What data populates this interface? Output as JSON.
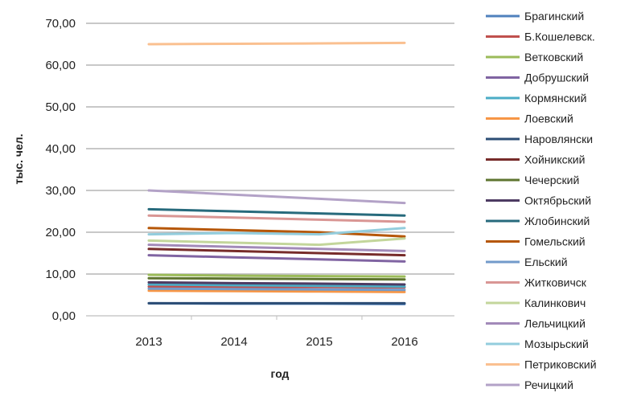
{
  "chart_data": {
    "type": "line",
    "xlabel": "год",
    "ylabel": "тыс. чел.",
    "ylim": [
      0,
      70
    ],
    "yticks": [
      "0,00",
      "10,00",
      "20,00",
      "30,00",
      "40,00",
      "50,00",
      "60,00",
      "70,00"
    ],
    "categories": [
      "2013",
      "2014",
      "2015",
      "2016"
    ],
    "grid": true,
    "legend_position": "right",
    "series": [
      {
        "name": "Брагинский",
        "color": "#4F81BD",
        "values": [
          3.0,
          2.9,
          2.9,
          2.8
        ]
      },
      {
        "name": "Б.Кошелевск.",
        "color": "#C0504D",
        "values": [
          7.0,
          6.9,
          6.9,
          6.8
        ]
      },
      {
        "name": "Ветковский",
        "color": "#9BBB59",
        "values": [
          9.8,
          9.6,
          9.5,
          9.4
        ]
      },
      {
        "name": "Добрушский",
        "color": "#8064A2",
        "values": [
          14.5,
          14.0,
          13.5,
          13.0
        ]
      },
      {
        "name": "Кормянский",
        "color": "#4BACC6",
        "values": [
          7.5,
          7.3,
          7.2,
          7.0
        ]
      },
      {
        "name": "Лоевский",
        "color": "#F79646",
        "values": [
          6.0,
          5.9,
          5.8,
          5.7
        ]
      },
      {
        "name": "Наровлянски",
        "color": "#2C4D75",
        "values": [
          3.0,
          3.0,
          3.0,
          3.0
        ]
      },
      {
        "name": "Хойникский",
        "color": "#772C2A",
        "values": [
          16.0,
          15.5,
          15.0,
          14.5
        ]
      },
      {
        "name": "Чечерский",
        "color": "#5F7530",
        "values": [
          9.0,
          8.9,
          8.8,
          8.7
        ]
      },
      {
        "name": "Октябрьский",
        "color": "#4D3B62",
        "values": [
          8.0,
          7.8,
          7.7,
          7.5
        ]
      },
      {
        "name": "Жлобинский",
        "color": "#276A7C",
        "values": [
          25.5,
          25.0,
          24.5,
          24.0
        ]
      },
      {
        "name": "Гомельский",
        "color": "#B65708",
        "values": [
          21.0,
          20.5,
          20.0,
          19.0
        ]
      },
      {
        "name": "Ельский",
        "color": "#729ACA",
        "values": [
          6.5,
          6.4,
          6.3,
          6.2
        ]
      },
      {
        "name": "Житковичск",
        "color": "#D99694",
        "values": [
          24.0,
          23.5,
          23.0,
          22.5
        ]
      },
      {
        "name": "Калинкович",
        "color": "#C3D69B",
        "values": [
          18.0,
          17.5,
          17.0,
          18.5
        ]
      },
      {
        "name": "Лельчицкий",
        "color": "#A28AB9",
        "values": [
          17.0,
          16.5,
          16.0,
          15.5
        ]
      },
      {
        "name": "Мозырьский",
        "color": "#93CDDD",
        "values": [
          19.5,
          19.8,
          19.5,
          21.0
        ]
      },
      {
        "name": "Петриковский",
        "color": "#FAC090",
        "values": [
          65.0,
          65.1,
          65.2,
          65.3
        ]
      },
      {
        "name": "Речицкий",
        "color": "#B3A2C7",
        "values": [
          30.0,
          29.0,
          28.0,
          27.0
        ]
      }
    ]
  }
}
